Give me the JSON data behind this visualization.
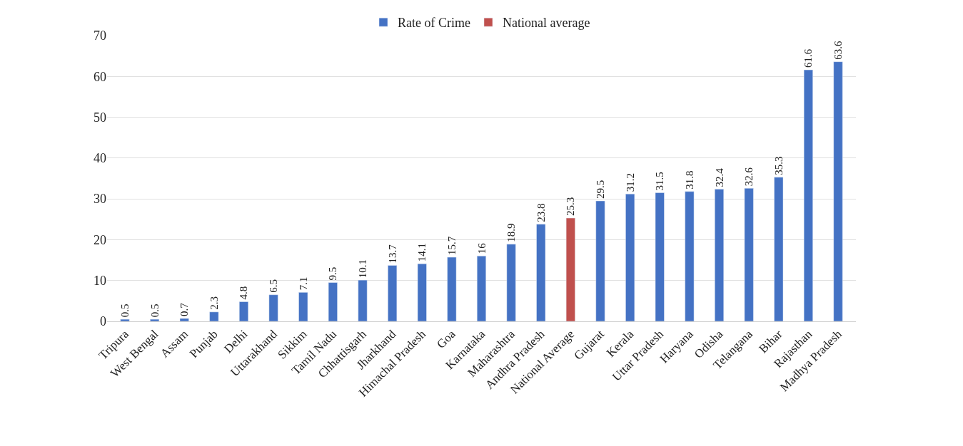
{
  "chart_data": {
    "type": "bar",
    "categories": [
      "Tripura",
      "West Bengal",
      "Assam",
      "Punjab",
      "Delhi",
      "Uttarakhand",
      "Sikkim",
      "Tamil Nadu",
      "Chhattisgarh",
      "Jharkhand",
      "Himachal Pradesh",
      "Goa",
      "Karnataka",
      "Maharashtra",
      "Andhra Pradesh",
      "National Average",
      "Gujarat",
      "Kerala",
      "Uttar Pradesh",
      "Haryana",
      "Odisha",
      "Telangana",
      "Bihar",
      "Rajasthan",
      "Madhya Pradesh"
    ],
    "series": [
      {
        "name": "Rate of Crime",
        "color": "#4472c4",
        "values": [
          0.5,
          0.5,
          0.7,
          2.3,
          4.8,
          6.5,
          7.1,
          9.5,
          10.1,
          13.7,
          14.1,
          15.7,
          16,
          18.9,
          23.8,
          null,
          29.5,
          31.2,
          31.5,
          31.8,
          32.4,
          32.6,
          35.3,
          61.6,
          63.6
        ]
      },
      {
        "name": "National average",
        "color": "#c0504d",
        "values": [
          null,
          null,
          null,
          null,
          null,
          null,
          null,
          null,
          null,
          null,
          null,
          null,
          null,
          null,
          null,
          25.3,
          null,
          null,
          null,
          null,
          null,
          null,
          null,
          null,
          null
        ]
      }
    ],
    "ylim": [
      0,
      70
    ],
    "yticks": [
      0,
      10,
      20,
      30,
      40,
      50,
      60,
      70
    ],
    "grid": "y",
    "legend": "top",
    "data_labels": true
  }
}
